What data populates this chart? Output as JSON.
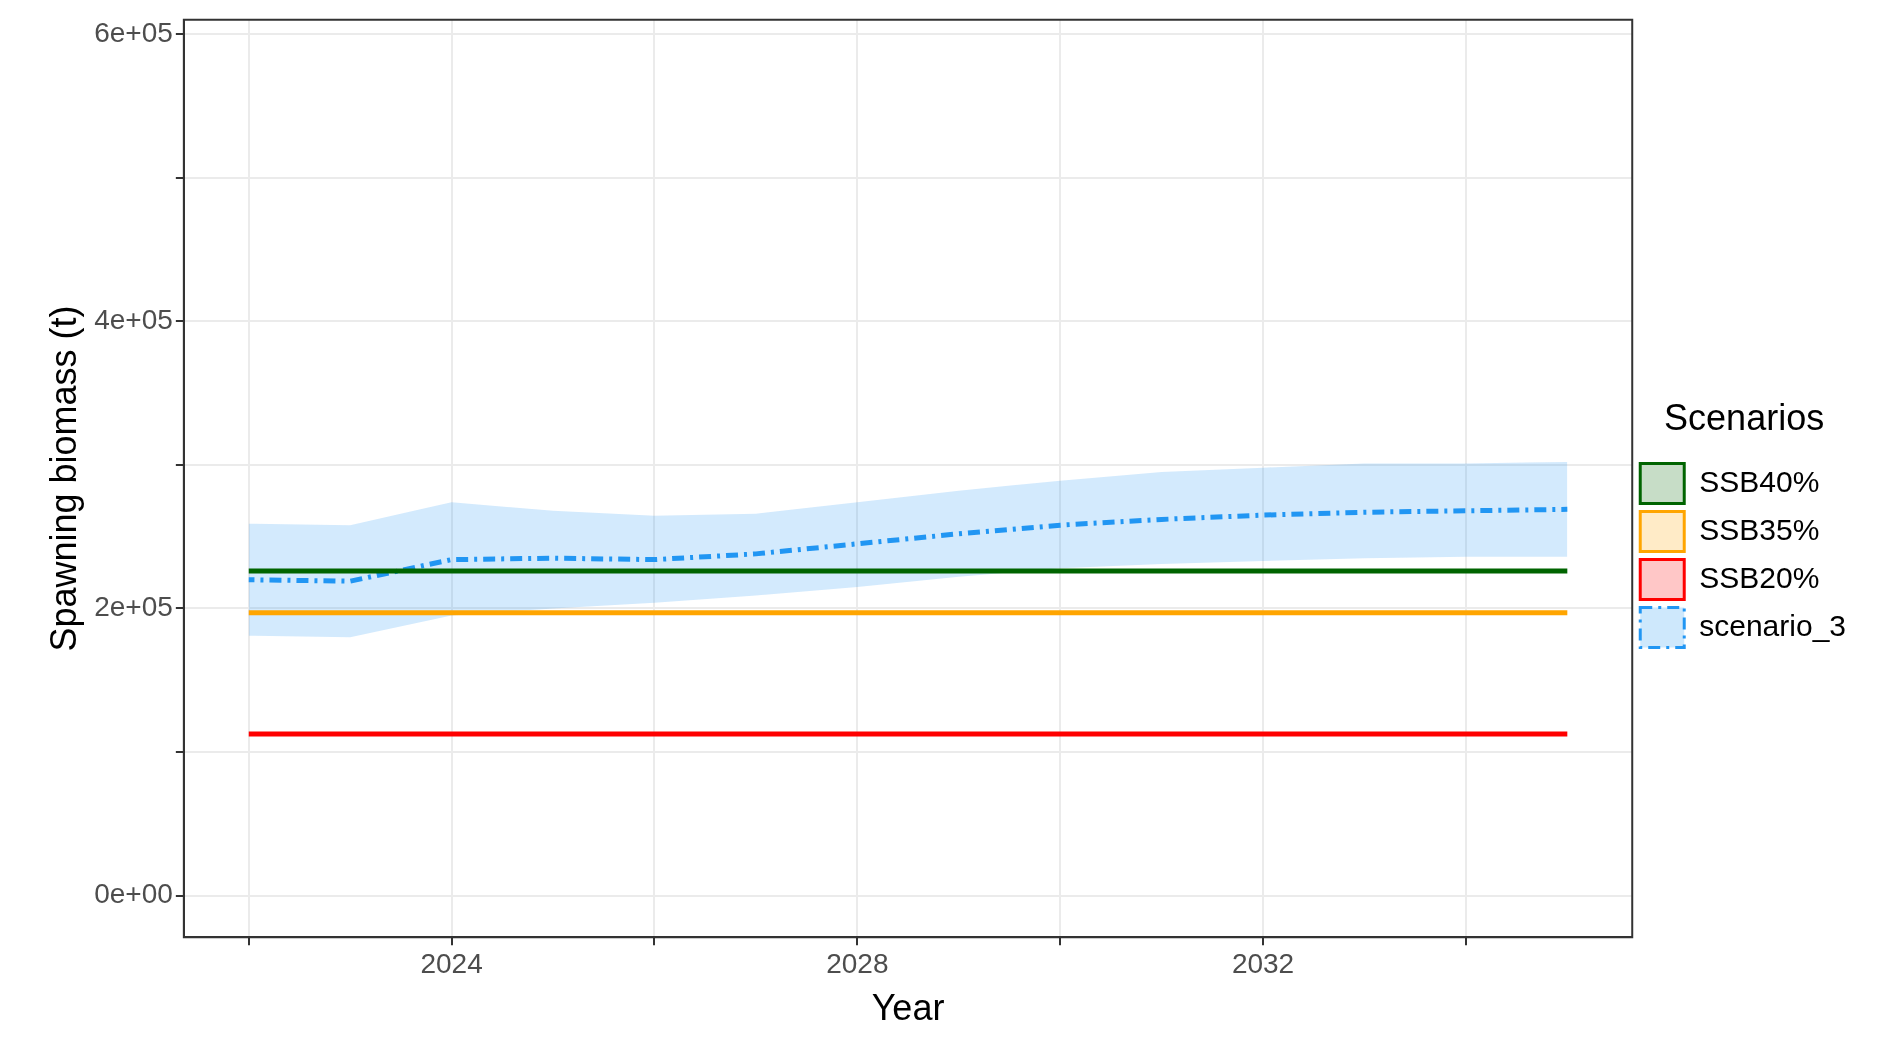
{
  "chart_data": {
    "type": "line",
    "xlabel": "Year",
    "ylabel": "Spawning biomass (t)",
    "legend_title": "Scenarios",
    "legend": "right",
    "grid": true,
    "marker": "none",
    "x": [
      2022,
      2023,
      2024,
      2025,
      2026,
      2027,
      2028,
      2029,
      2030,
      2031,
      2032,
      2033,
      2034,
      2035
    ],
    "xlim": [
      2021.36,
      2035.64
    ],
    "xticks": [
      {
        "value": 2022,
        "label": null
      },
      2024,
      {
        "value": 2026,
        "label": null
      },
      2028,
      {
        "value": 2030,
        "label": null
      },
      2032,
      {
        "value": 2034,
        "label": null
      }
    ],
    "ylim": [
      -29000,
      610000
    ],
    "yticks": [
      {
        "value": 0,
        "label": "0e+00"
      },
      {
        "value": 100000,
        "label": null
      },
      {
        "value": 200000,
        "label": "2e+05"
      },
      {
        "value": 300000,
        "label": null
      },
      {
        "value": 400000,
        "label": "4e+05"
      },
      {
        "value": 500000,
        "label": null
      },
      {
        "value": 600000,
        "label": "6e+05"
      }
    ],
    "series": [
      {
        "name": "SSB40%",
        "color": "#006400",
        "line_style": "solid",
        "values": [
          226000,
          226000,
          226000,
          226000,
          226000,
          226000,
          226000,
          226000,
          226000,
          226000,
          226000,
          226000,
          226000,
          226000
        ]
      },
      {
        "name": "SSB35%",
        "color": "#ffa500",
        "line_style": "solid",
        "values": [
          197000,
          197000,
          197000,
          197000,
          197000,
          197000,
          197000,
          197000,
          197000,
          197000,
          197000,
          197000,
          197000,
          197000
        ]
      },
      {
        "name": "SSB20%",
        "color": "#ff0000",
        "line_style": "solid",
        "values": [
          112500,
          112500,
          112500,
          112500,
          112500,
          112500,
          112500,
          112500,
          112500,
          112500,
          112500,
          112500,
          112500,
          112500
        ]
      },
      {
        "name": "scenario_3",
        "color": "#2196f3",
        "line_style": "dashed",
        "values": [
          220000,
          219000,
          234000,
          235000,
          234000,
          238000,
          245000,
          252000,
          258000,
          262000,
          265000,
          267000,
          268000,
          269000
        ],
        "lower": [
          181000,
          180000,
          195000,
          200000,
          204000,
          209000,
          215000,
          222000,
          228000,
          231000,
          233000,
          235000,
          236000,
          236000
        ],
        "upper": [
          259000,
          258000,
          274000,
          268000,
          264500,
          266000,
          274000,
          282000,
          289000,
          295000,
          298000,
          301000,
          301000,
          302000
        ]
      }
    ]
  }
}
